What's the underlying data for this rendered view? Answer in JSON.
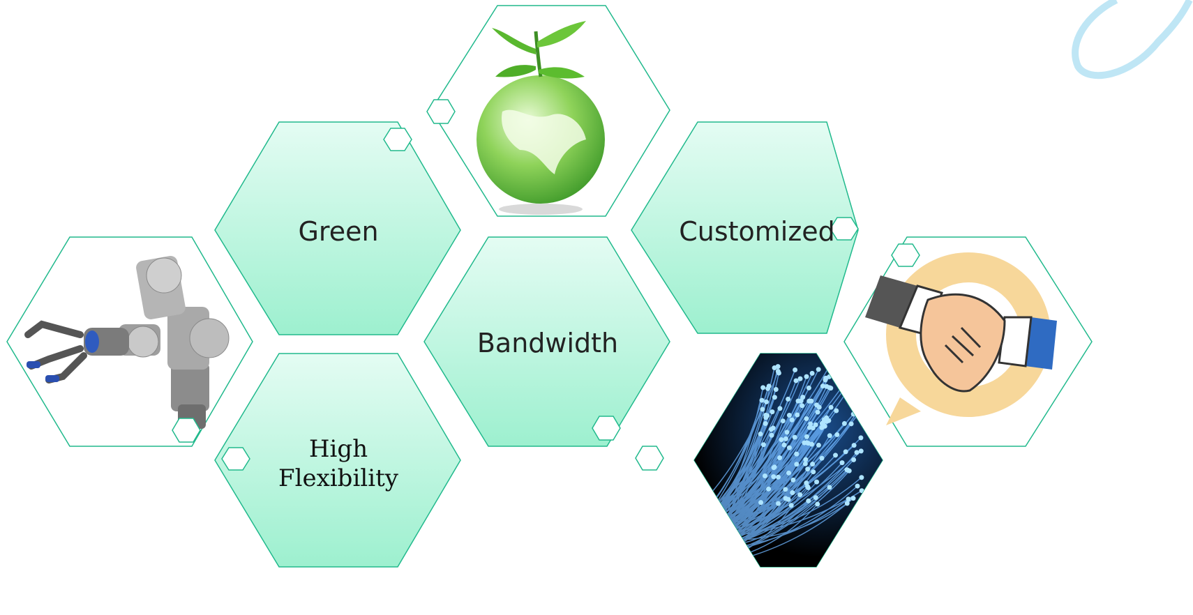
{
  "hexagons": [
    {
      "id": "green",
      "label": "Green",
      "kind": "text"
    },
    {
      "id": "customized",
      "label": "Customized",
      "kind": "text"
    },
    {
      "id": "bandwidth",
      "label": "Bandwidth",
      "kind": "text"
    },
    {
      "id": "high-flexibility",
      "label_lines": [
        "High",
        "Flexibility"
      ],
      "kind": "text"
    },
    {
      "id": "earth-plant",
      "kind": "image",
      "icon": "earth-sprout-icon"
    },
    {
      "id": "robot-arm",
      "kind": "image",
      "icon": "robot-arm-icon"
    },
    {
      "id": "handshake",
      "kind": "image",
      "icon": "handshake-icon"
    },
    {
      "id": "optical-fiber",
      "kind": "image",
      "icon": "optical-fiber-icon"
    }
  ],
  "colors": {
    "outline": "#20b98c",
    "fill_top": "#dffbf0",
    "fill_bottom": "#a4f0d2",
    "fiber_bg": "#000000",
    "fiber_glow": "#8fd8ff"
  }
}
